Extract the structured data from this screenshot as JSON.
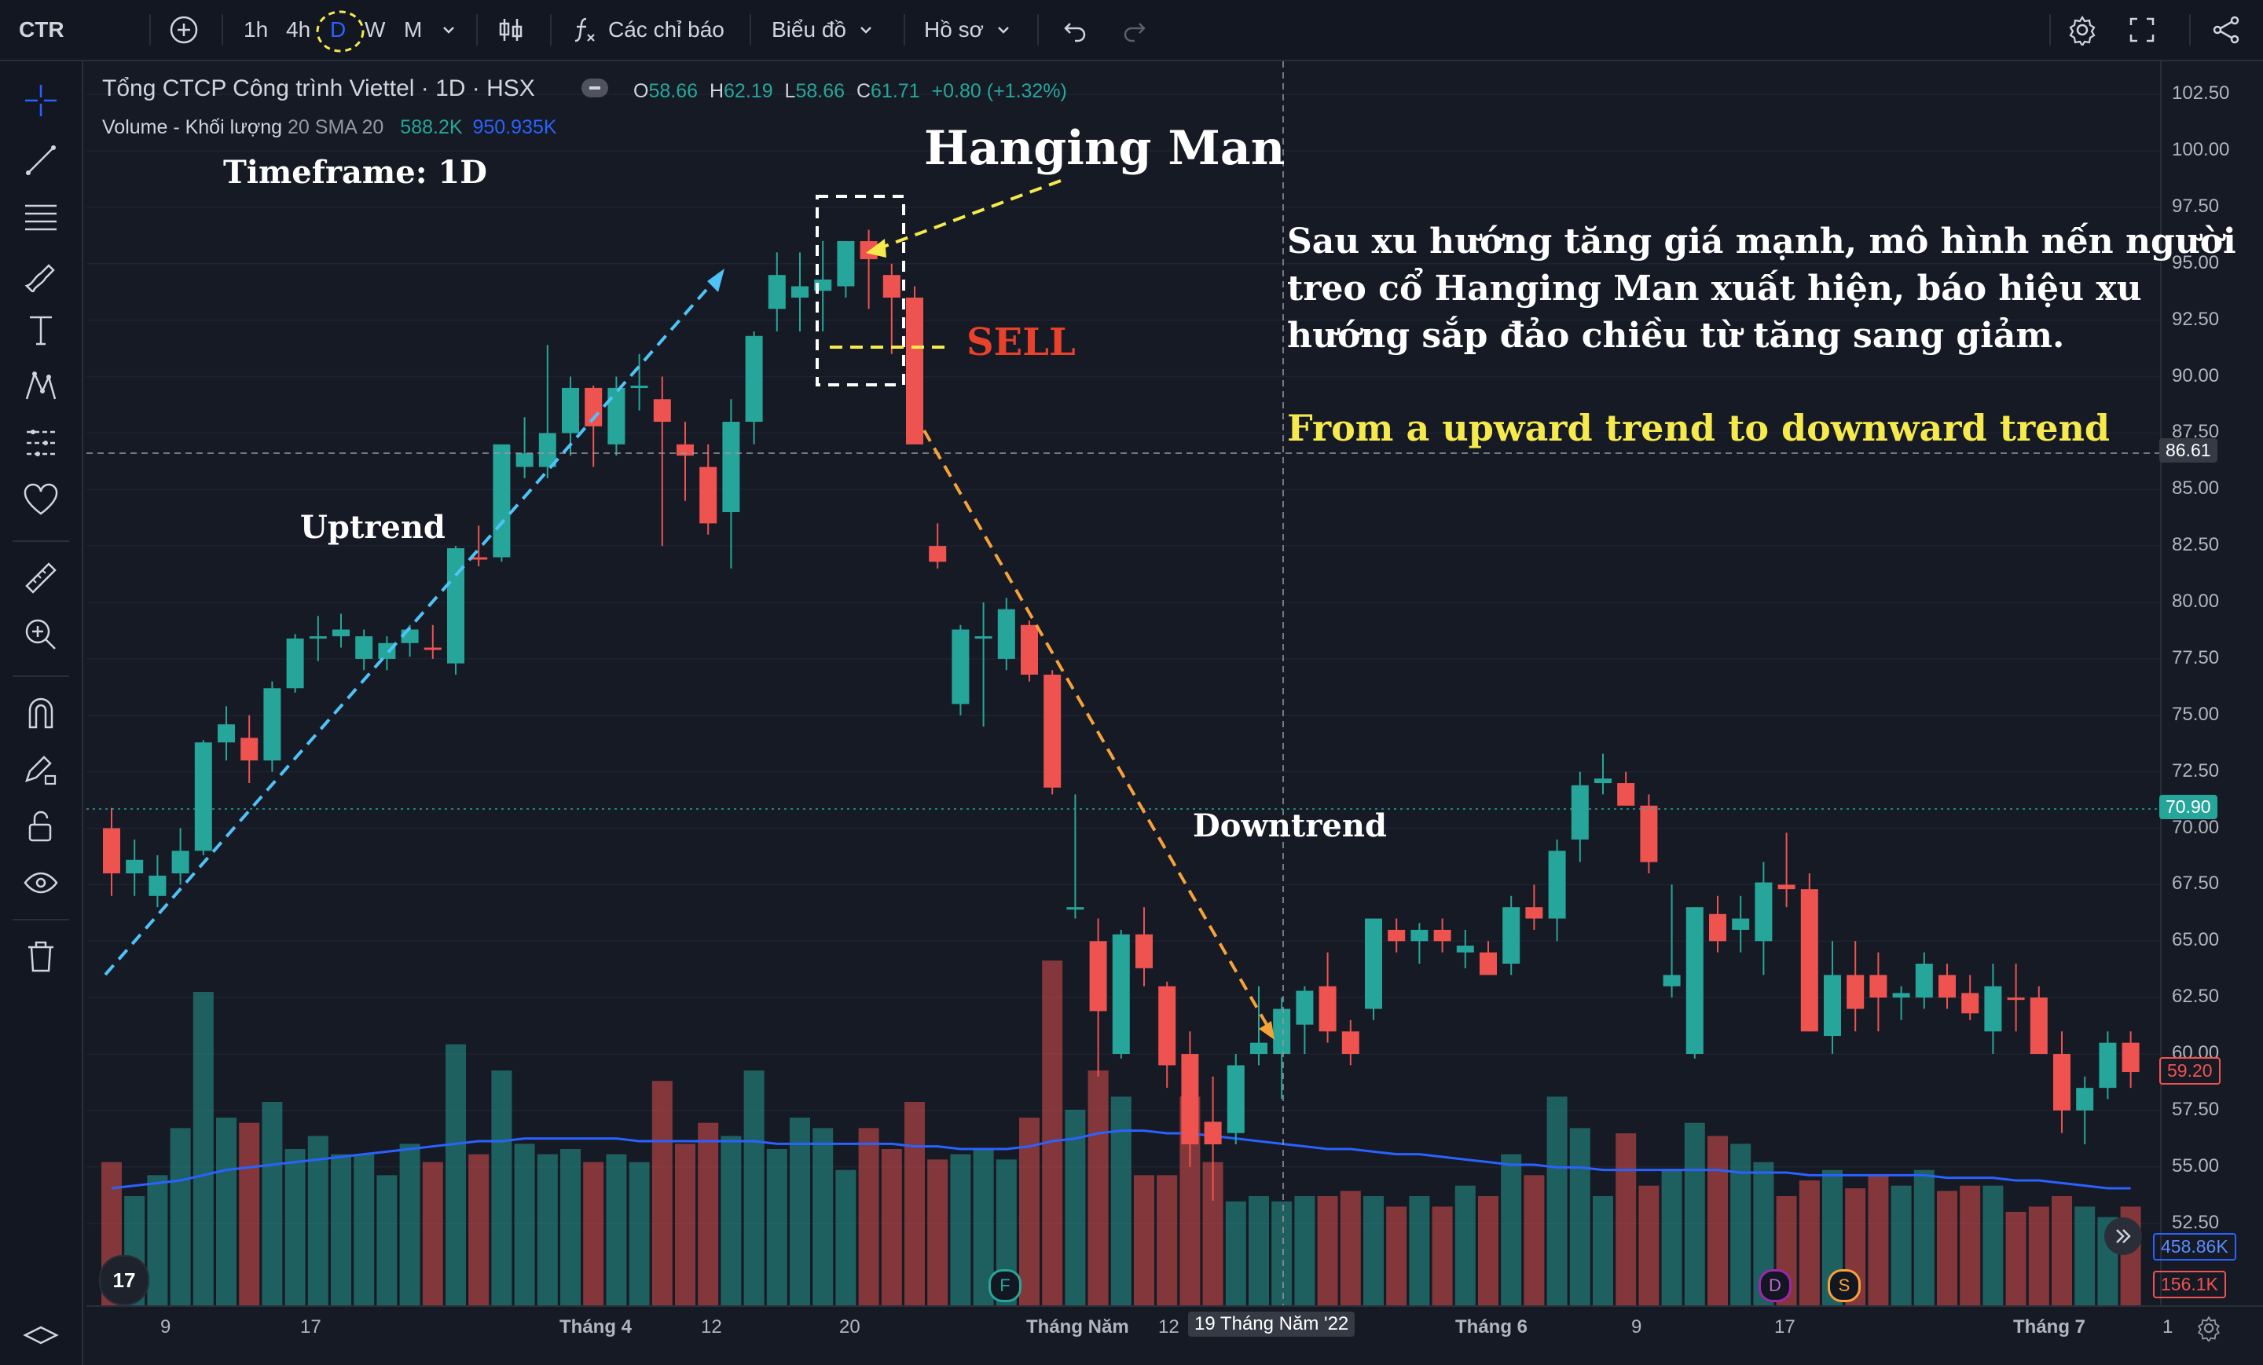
{
  "toolbar": {
    "symbol": "CTR",
    "intervals": [
      "1h",
      "4h",
      "D",
      "W",
      "M"
    ],
    "active_interval": "D",
    "indicators_label": "Các chỉ báo",
    "chart_menu_label": "Biểu đồ",
    "profile_label": "Hồ sơ"
  },
  "legend": {
    "title": "Tổng CTCP Công trình Viettel · 1D · HSX",
    "o_label": "O",
    "o": "58.66",
    "h_label": "H",
    "h": "62.19",
    "l_label": "L",
    "l": "58.66",
    "c_label": "C",
    "c": "61.71",
    "change": "+0.80 (+1.32%)",
    "volume_label": "Volume - Khối lượng",
    "volume_params": "20 SMA 20",
    "volume_value": "588.2K",
    "volume_sma": "950.935K"
  },
  "annotations": {
    "timeframe": "Timeframe: 1D",
    "hanging_man": "Hanging Man",
    "sell": "SELL",
    "uptrend": "Uptrend",
    "downtrend": "Downtrend",
    "vi_note_1": "Sau xu hướng tăng giá mạnh, mô hình nến người",
    "vi_note_2": "treo cổ Hanging Man xuất hiện, báo hiệu xu",
    "vi_note_3": "hướng sắp đảo chiều từ tăng sang giảm.",
    "en_note": "From a upward trend to downward trend"
  },
  "price_axis": {
    "ticks": [
      "102.50",
      "100.00",
      "97.50",
      "95.00",
      "92.50",
      "90.00",
      "87.50",
      "85.00",
      "82.50",
      "80.00",
      "77.50",
      "75.00",
      "72.50",
      "70.00",
      "67.50",
      "65.00",
      "62.50",
      "60.00",
      "57.50",
      "55.00",
      "52.50"
    ],
    "crosshair_price": "86.61",
    "last_price": "70.90",
    "red_price": "59.20",
    "volume_sma_badge": "458.86K",
    "volume_badge": "156.1K"
  },
  "time_axis": {
    "labels": [
      "9",
      "17",
      "Tháng 4",
      "12",
      "20",
      "Tháng Năm",
      "12",
      "Tháng 6",
      "9",
      "17",
      "Tháng 7",
      "1"
    ],
    "crosshair_date": "19 Tháng Năm '22"
  },
  "event_markers": [
    "F",
    "D",
    "S"
  ],
  "logo_text": "17",
  "colors": {
    "up": "#26a69a",
    "down": "#ef5350",
    "bg": "#161a25",
    "accent": "#2962ff",
    "sma": "#2962ff",
    "yellow": "#f5e94c",
    "orange": "#f6a23a",
    "cyan": "#4fc3f7",
    "sell": "#e8412c"
  },
  "chart_data": {
    "type": "candlestick",
    "ylim": [
      51,
      104
    ],
    "volume_max": 1.5,
    "candles": [
      {
        "o": 70.0,
        "h": 70.9,
        "l": 67.0,
        "c": 68.0
      },
      {
        "o": 68.0,
        "h": 69.5,
        "l": 67.0,
        "c": 68.6
      },
      {
        "o": 67.0,
        "h": 68.8,
        "l": 66.5,
        "c": 67.9
      },
      {
        "o": 68.0,
        "h": 70.0,
        "l": 67.5,
        "c": 69.0
      },
      {
        "o": 69.0,
        "h": 73.9,
        "l": 68.8,
        "c": 73.8
      },
      {
        "o": 73.8,
        "h": 75.4,
        "l": 73.0,
        "c": 74.6
      },
      {
        "o": 74.0,
        "h": 75.0,
        "l": 72.0,
        "c": 73.0
      },
      {
        "o": 73.0,
        "h": 76.5,
        "l": 72.5,
        "c": 76.2
      },
      {
        "o": 76.2,
        "h": 78.6,
        "l": 76.0,
        "c": 78.4
      },
      {
        "o": 78.4,
        "h": 79.4,
        "l": 77.4,
        "c": 78.5
      },
      {
        "o": 78.5,
        "h": 79.5,
        "l": 78.0,
        "c": 78.8
      },
      {
        "o": 77.5,
        "h": 78.8,
        "l": 77.0,
        "c": 78.5
      },
      {
        "o": 77.5,
        "h": 78.5,
        "l": 77.0,
        "c": 78.2
      },
      {
        "o": 78.2,
        "h": 79.0,
        "l": 77.6,
        "c": 78.8
      },
      {
        "o": 78.0,
        "h": 79.0,
        "l": 77.5,
        "c": 77.9
      },
      {
        "o": 77.3,
        "h": 82.5,
        "l": 76.8,
        "c": 82.4
      },
      {
        "o": 82.0,
        "h": 83.4,
        "l": 81.6,
        "c": 81.9
      },
      {
        "o": 82.0,
        "h": 87.0,
        "l": 81.8,
        "c": 87.0
      },
      {
        "o": 86.0,
        "h": 88.2,
        "l": 85.5,
        "c": 86.6
      },
      {
        "o": 86.0,
        "h": 91.4,
        "l": 85.5,
        "c": 87.5
      },
      {
        "o": 87.5,
        "h": 90.0,
        "l": 86.5,
        "c": 89.5
      },
      {
        "o": 89.5,
        "h": 89.6,
        "l": 86.0,
        "c": 87.8
      },
      {
        "o": 87.0,
        "h": 90.0,
        "l": 86.5,
        "c": 89.5
      },
      {
        "o": 89.5,
        "h": 91.0,
        "l": 88.5,
        "c": 89.6
      },
      {
        "o": 89.0,
        "h": 90.0,
        "l": 82.5,
        "c": 88.0
      },
      {
        "o": 87.0,
        "h": 88.0,
        "l": 84.5,
        "c": 86.5
      },
      {
        "o": 86.0,
        "h": 87.0,
        "l": 83.0,
        "c": 83.5
      },
      {
        "o": 84.0,
        "h": 89.0,
        "l": 81.5,
        "c": 88.0
      },
      {
        "o": 88.0,
        "h": 92.0,
        "l": 87.0,
        "c": 91.8
      },
      {
        "o": 93.0,
        "h": 95.5,
        "l": 92.0,
        "c": 94.5
      },
      {
        "o": 93.5,
        "h": 95.5,
        "l": 92.0,
        "c": 94.0
      },
      {
        "o": 93.8,
        "h": 96.0,
        "l": 92.0,
        "c": 94.3
      },
      {
        "o": 94.0,
        "h": 96.0,
        "l": 93.5,
        "c": 96.0
      },
      {
        "o": 96.0,
        "h": 96.5,
        "l": 93.0,
        "c": 95.2
      },
      {
        "o": 94.5,
        "h": 95.0,
        "l": 91.0,
        "c": 93.5
      },
      {
        "o": 93.5,
        "h": 94.0,
        "l": 87.0,
        "c": 87.0
      },
      {
        "o": 82.5,
        "h": 83.5,
        "l": 81.5,
        "c": 81.8
      },
      {
        "o": 75.5,
        "h": 79.0,
        "l": 75.0,
        "c": 78.8
      },
      {
        "o": 78.5,
        "h": 80.0,
        "l": 74.5,
        "c": 78.5
      },
      {
        "o": 77.5,
        "h": 80.2,
        "l": 77.0,
        "c": 79.7
      },
      {
        "o": 79.0,
        "h": 79.2,
        "l": 76.5,
        "c": 76.8
      },
      {
        "o": 76.8,
        "h": 77.0,
        "l": 71.5,
        "c": 71.8
      },
      {
        "o": 66.5,
        "h": 71.5,
        "l": 66.0,
        "c": 66.5
      },
      {
        "o": 65.0,
        "h": 66.0,
        "l": 59.0,
        "c": 61.9
      },
      {
        "o": 60.0,
        "h": 65.5,
        "l": 59.8,
        "c": 65.3
      },
      {
        "o": 65.3,
        "h": 66.5,
        "l": 63.0,
        "c": 63.8
      },
      {
        "o": 63.0,
        "h": 63.2,
        "l": 58.5,
        "c": 59.5
      },
      {
        "o": 60.0,
        "h": 61.0,
        "l": 55.0,
        "c": 56.0
      },
      {
        "o": 57.0,
        "h": 59.0,
        "l": 53.5,
        "c": 56.0
      },
      {
        "o": 56.5,
        "h": 60.0,
        "l": 56.0,
        "c": 59.5
      },
      {
        "o": 60.0,
        "h": 63.0,
        "l": 59.5,
        "c": 60.5
      },
      {
        "o": 60.0,
        "h": 62.5,
        "l": 58.0,
        "c": 62.0
      },
      {
        "o": 61.3,
        "h": 63.0,
        "l": 60.0,
        "c": 62.8
      },
      {
        "o": 63.0,
        "h": 64.5,
        "l": 60.5,
        "c": 61.0
      },
      {
        "o": 61.0,
        "h": 61.5,
        "l": 59.5,
        "c": 60.0
      },
      {
        "o": 62.0,
        "h": 66.0,
        "l": 61.5,
        "c": 66.0
      },
      {
        "o": 65.5,
        "h": 66.0,
        "l": 64.5,
        "c": 65.0
      },
      {
        "o": 65.0,
        "h": 65.8,
        "l": 64.0,
        "c": 65.5
      },
      {
        "o": 65.5,
        "h": 66.0,
        "l": 64.5,
        "c": 65.0
      },
      {
        "o": 64.5,
        "h": 65.5,
        "l": 63.8,
        "c": 64.8
      },
      {
        "o": 64.5,
        "h": 65.0,
        "l": 63.5,
        "c": 63.5
      },
      {
        "o": 64.0,
        "h": 67.0,
        "l": 63.5,
        "c": 66.5
      },
      {
        "o": 66.5,
        "h": 67.5,
        "l": 65.5,
        "c": 66.0
      },
      {
        "o": 66.0,
        "h": 69.5,
        "l": 65.0,
        "c": 69.0
      },
      {
        "o": 69.5,
        "h": 72.5,
        "l": 68.5,
        "c": 71.9
      },
      {
        "o": 72.0,
        "h": 73.3,
        "l": 71.5,
        "c": 72.2
      },
      {
        "o": 72.0,
        "h": 72.5,
        "l": 71.0,
        "c": 71.0
      },
      {
        "o": 71.0,
        "h": 71.5,
        "l": 68.0,
        "c": 68.5
      },
      {
        "o": 63.0,
        "h": 67.5,
        "l": 62.5,
        "c": 63.5
      },
      {
        "o": 60.0,
        "h": 66.5,
        "l": 59.8,
        "c": 66.5
      },
      {
        "o": 66.2,
        "h": 67.0,
        "l": 64.5,
        "c": 65.0
      },
      {
        "o": 65.5,
        "h": 67.0,
        "l": 64.5,
        "c": 66.0
      },
      {
        "o": 65.0,
        "h": 68.5,
        "l": 63.5,
        "c": 67.6
      },
      {
        "o": 67.5,
        "h": 69.8,
        "l": 66.5,
        "c": 67.3
      },
      {
        "o": 67.3,
        "h": 68.0,
        "l": 61.0,
        "c": 61.0
      },
      {
        "o": 60.8,
        "h": 65.0,
        "l": 60.0,
        "c": 63.5
      },
      {
        "o": 63.5,
        "h": 65.0,
        "l": 61.0,
        "c": 62.0
      },
      {
        "o": 63.5,
        "h": 64.5,
        "l": 61.0,
        "c": 62.5
      },
      {
        "o": 62.5,
        "h": 63.0,
        "l": 61.5,
        "c": 62.7
      },
      {
        "o": 62.5,
        "h": 64.5,
        "l": 62.0,
        "c": 64.0
      },
      {
        "o": 63.5,
        "h": 64.0,
        "l": 62.0,
        "c": 62.5
      },
      {
        "o": 62.7,
        "h": 63.5,
        "l": 61.5,
        "c": 61.8
      },
      {
        "o": 61.0,
        "h": 64.0,
        "l": 60.0,
        "c": 63.0
      },
      {
        "o": 62.5,
        "h": 64.0,
        "l": 61.0,
        "c": 62.4
      },
      {
        "o": 62.5,
        "h": 63.0,
        "l": 60.0,
        "c": 60.0
      },
      {
        "o": 60.0,
        "h": 61.0,
        "l": 56.5,
        "c": 57.5
      },
      {
        "o": 57.5,
        "h": 59.0,
        "l": 56.0,
        "c": 58.5
      },
      {
        "o": 58.5,
        "h": 61.0,
        "l": 58.0,
        "c": 60.5
      },
      {
        "o": 60.5,
        "h": 61.0,
        "l": 58.5,
        "c": 59.2
      }
    ],
    "volumes": [
      0.55,
      0.42,
      0.5,
      0.68,
      1.2,
      0.72,
      0.7,
      0.78,
      0.6,
      0.65,
      0.58,
      0.58,
      0.5,
      0.62,
      0.55,
      1.0,
      0.58,
      0.9,
      0.62,
      0.58,
      0.6,
      0.55,
      0.58,
      0.55,
      0.86,
      0.62,
      0.7,
      0.65,
      0.9,
      0.6,
      0.72,
      0.68,
      0.52,
      0.68,
      0.6,
      0.78,
      0.56,
      0.58,
      0.6,
      0.56,
      0.72,
      1.32,
      0.75,
      0.9,
      0.8,
      0.5,
      0.5,
      0.8,
      0.55,
      0.4,
      0.42,
      0.4,
      0.42,
      0.42,
      0.44,
      0.42,
      0.38,
      0.42,
      0.38,
      0.46,
      0.42,
      0.58,
      0.5,
      0.8,
      0.68,
      0.42,
      0.66,
      0.46,
      0.52,
      0.7,
      0.65,
      0.62,
      0.55,
      0.42,
      0.48,
      0.52,
      0.45,
      0.5,
      0.46,
      0.52,
      0.44,
      0.46,
      0.46,
      0.36,
      0.38,
      0.42,
      0.38,
      0.34,
      0.38
    ],
    "volume_sma": [
      0.45,
      0.46,
      0.47,
      0.48,
      0.5,
      0.52,
      0.53,
      0.54,
      0.55,
      0.56,
      0.57,
      0.58,
      0.59,
      0.6,
      0.61,
      0.62,
      0.63,
      0.63,
      0.64,
      0.64,
      0.64,
      0.64,
      0.64,
      0.63,
      0.63,
      0.63,
      0.63,
      0.63,
      0.63,
      0.62,
      0.62,
      0.62,
      0.62,
      0.62,
      0.62,
      0.61,
      0.61,
      0.6,
      0.6,
      0.6,
      0.61,
      0.63,
      0.64,
      0.66,
      0.67,
      0.67,
      0.66,
      0.66,
      0.65,
      0.64,
      0.63,
      0.62,
      0.61,
      0.6,
      0.6,
      0.59,
      0.58,
      0.58,
      0.57,
      0.56,
      0.55,
      0.54,
      0.54,
      0.53,
      0.53,
      0.52,
      0.52,
      0.52,
      0.52,
      0.52,
      0.52,
      0.51,
      0.51,
      0.51,
      0.5,
      0.5,
      0.5,
      0.5,
      0.5,
      0.5,
      0.49,
      0.49,
      0.49,
      0.48,
      0.48,
      0.47,
      0.46,
      0.45,
      0.45
    ]
  }
}
